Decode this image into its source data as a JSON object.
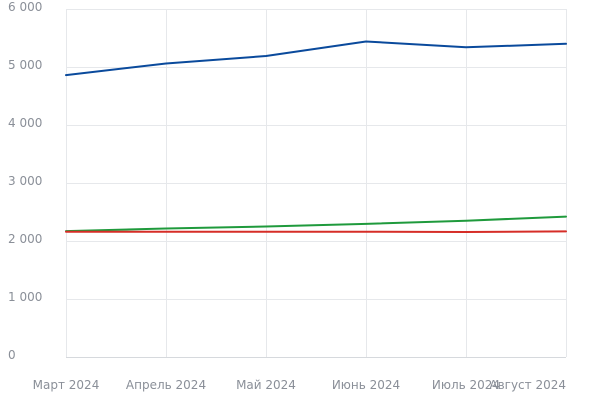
{
  "chart_data": {
    "type": "line",
    "title": "",
    "xlabel": "",
    "ylabel": "",
    "categories": [
      "Март 2024",
      "Апрель 2024",
      "Май 2024",
      "Июнь 2024",
      "Июль 2024",
      "Август 2024"
    ],
    "ylim": [
      0,
      6000
    ],
    "y_ticks": [
      0,
      1000,
      2000,
      3000,
      4000,
      5000,
      6000
    ],
    "y_tick_labels": [
      "0",
      "1 000",
      "2 000",
      "3 000",
      "4 000",
      "5 000",
      "6 000"
    ],
    "grid": true,
    "legend": "none",
    "series": [
      {
        "color": "#0a4a9c",
        "values": [
          4860,
          5060,
          5190,
          5440,
          5340,
          5400
        ]
      },
      {
        "color": "#1f9a3c",
        "values": [
          2170,
          2215,
          2250,
          2295,
          2350,
          2420
        ]
      },
      {
        "color": "#d62d27",
        "values": [
          2160,
          2160,
          2160,
          2160,
          2155,
          2165
        ]
      }
    ]
  }
}
